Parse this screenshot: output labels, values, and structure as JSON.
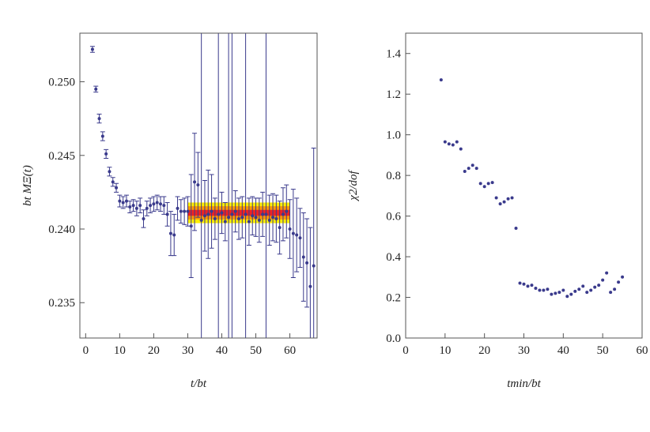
{
  "chart_data": [
    {
      "type": "errorbar",
      "x_label": "t/bt",
      "y_label": "bt MΞ(t)",
      "color": "#3a3a8c",
      "xlim": [
        -1.7,
        68
      ],
      "ylim": [
        0.2326,
        0.2533
      ],
      "xticks": [
        0,
        10,
        20,
        30,
        40,
        50,
        60
      ],
      "yticks": [
        {
          "value": 0.235,
          "label": "0.235"
        },
        {
          "value": 0.24,
          "label": "0.240"
        },
        {
          "value": 0.245,
          "label": "0.245"
        },
        {
          "value": 0.25,
          "label": "0.250"
        }
      ],
      "fit_x": [
        30,
        60
      ],
      "fit_value": 0.2411,
      "fit_bands": [
        {
          "halfwidth": 0.0007,
          "color": "#ffee00"
        },
        {
          "halfwidth": 0.00045,
          "color": "#ff9900"
        },
        {
          "halfwidth": 0.0002,
          "color": "#ee2222"
        }
      ],
      "x": [
        2,
        3,
        4,
        5,
        6,
        7,
        8,
        9,
        10,
        11,
        12,
        13,
        14,
        15,
        16,
        17,
        18,
        19,
        20,
        21,
        22,
        23,
        24,
        25,
        26,
        27,
        28,
        29,
        30,
        31,
        32,
        33,
        34,
        35,
        36,
        37,
        38,
        39,
        40,
        41,
        42,
        43,
        44,
        45,
        46,
        47,
        48,
        49,
        50,
        51,
        52,
        53,
        54,
        55,
        56,
        57,
        58,
        59,
        60,
        61,
        62,
        63,
        64,
        65,
        66,
        67
      ],
      "values": [
        0.2522,
        0.2495,
        0.2475,
        0.2463,
        0.2451,
        0.2439,
        0.2432,
        0.2428,
        0.2419,
        0.2418,
        0.2419,
        0.2415,
        0.2416,
        0.2414,
        0.2416,
        0.2407,
        0.2414,
        0.2416,
        0.2417,
        0.2418,
        0.2417,
        0.2416,
        0.241,
        0.2397,
        0.2396,
        0.2414,
        0.2412,
        0.2412,
        0.2412,
        0.2402,
        0.2432,
        0.243,
        0.2406,
        0.2409,
        0.241,
        0.2412,
        0.2407,
        0.241,
        0.2411,
        0.2405,
        0.2408,
        0.241,
        0.2412,
        0.2407,
        0.2408,
        0.241,
        0.2405,
        0.2409,
        0.2408,
        0.2406,
        0.241,
        0.241,
        0.2406,
        0.2408,
        0.2407,
        0.2401,
        0.241,
        0.2412,
        0.24,
        0.2397,
        0.2396,
        0.2394,
        0.2381,
        0.2377,
        0.2361,
        0.2375
      ],
      "errors": [
        0.0002,
        0.0002,
        0.0003,
        0.0003,
        0.0003,
        0.0003,
        0.0003,
        0.0003,
        0.0004,
        0.0004,
        0.0004,
        0.0004,
        0.0004,
        0.0005,
        0.0005,
        0.0006,
        0.0005,
        0.0005,
        0.0005,
        0.0005,
        0.0005,
        0.0006,
        0.0008,
        0.0015,
        0.0014,
        0.0008,
        0.0008,
        0.0009,
        0.001,
        0.0035,
        0.0033,
        0.0022,
        0.015,
        0.0024,
        0.003,
        0.0025,
        0.0014,
        0.015,
        0.0014,
        0.0013,
        0.015,
        0.015,
        0.0014,
        0.0014,
        0.0014,
        0.015,
        0.0016,
        0.0013,
        0.0013,
        0.0015,
        0.0015,
        0.015,
        0.0017,
        0.0016,
        0.0016,
        0.0018,
        0.0018,
        0.0018,
        0.002,
        0.003,
        0.0025,
        0.002,
        0.003,
        0.003,
        0.004,
        0.008
      ]
    },
    {
      "type": "scatter",
      "x_label": "tmin/bt",
      "y_label": "χ2/dof",
      "color": "#3a3a8c",
      "xlim": [
        0,
        60
      ],
      "ylim": [
        0,
        1.5
      ],
      "xticks": [
        0,
        10,
        20,
        30,
        40,
        50,
        60
      ],
      "yticks": [
        {
          "value": 0,
          "label": "0.0"
        },
        0.2,
        0.4,
        0.6,
        0.8,
        {
          "value": 1,
          "label": "1.0"
        },
        1.2,
        1.4
      ],
      "x": [
        9,
        10,
        11,
        12,
        13,
        14,
        15,
        16,
        17,
        18,
        19,
        20,
        21,
        22,
        23,
        24,
        25,
        26,
        27,
        28,
        29,
        30,
        31,
        32,
        33,
        34,
        35,
        36,
        37,
        38,
        39,
        40,
        41,
        42,
        43,
        44,
        45,
        46,
        47,
        48,
        49,
        50,
        51,
        52,
        53,
        54,
        55
      ],
      "values": [
        1.27,
        0.965,
        0.955,
        0.95,
        0.965,
        0.93,
        0.82,
        0.835,
        0.85,
        0.835,
        0.76,
        0.745,
        0.76,
        0.765,
        0.69,
        0.66,
        0.67,
        0.685,
        0.69,
        0.54,
        0.27,
        0.265,
        0.255,
        0.26,
        0.245,
        0.235,
        0.235,
        0.24,
        0.215,
        0.22,
        0.225,
        0.235,
        0.205,
        0.215,
        0.23,
        0.24,
        0.255,
        0.225,
        0.235,
        0.25,
        0.26,
        0.285,
        0.32,
        0.225,
        0.24,
        0.275,
        0.3
      ]
    }
  ]
}
